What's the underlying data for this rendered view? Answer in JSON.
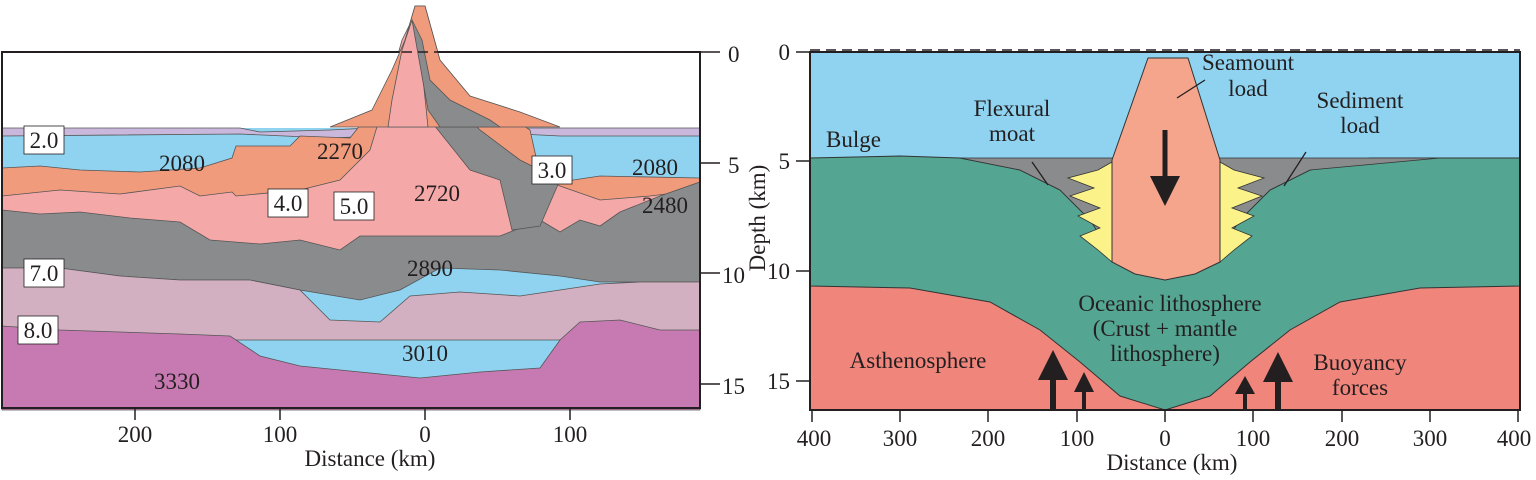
{
  "left_panel": {
    "xlabel": "Distance (km)",
    "ylabel": "Depth (km)",
    "x_ticks": [
      "200",
      "100",
      "0",
      "100"
    ],
    "y_ticks": [
      "0",
      "5",
      "10",
      "15"
    ],
    "velocities": [
      "2.0",
      "3.0",
      "4.0",
      "5.0",
      "7.0",
      "8.0"
    ],
    "densities": [
      "2080",
      "2080",
      "2270",
      "2720",
      "2480",
      "2890",
      "3010",
      "3330"
    ],
    "colors": {
      "water": "#8fd3f0",
      "sediment_thin": "#c9b8dc",
      "orange": "#f19b7d",
      "pink": "#f4a9a8",
      "gray": "#8a8b8d",
      "mauve": "#d3b0c1",
      "magenta": "#c77ab2"
    }
  },
  "right_panel": {
    "xlabel": "Distance (km)",
    "ylabel": "Depth (km)",
    "x_ticks": [
      "400",
      "300",
      "200",
      "100",
      "0",
      "100",
      "200",
      "300",
      "400"
    ],
    "y_ticks": [
      "0",
      "5",
      "10",
      "15"
    ],
    "labels": {
      "seamount_1": "Seamount",
      "seamount_2": "load",
      "flexural_1": "Flexural",
      "flexural_2": "moat",
      "sediment_1": "Sediment",
      "sediment_2": "load",
      "bulge": "Bulge",
      "oceanic_1": "Oceanic lithosphere",
      "oceanic_2": "(Crust + mantle",
      "oceanic_3": "lithosphere)",
      "asthenosphere": "Asthenosphere",
      "buoyancy_1": "Buoyancy",
      "buoyancy_2": "forces"
    },
    "colors": {
      "water": "#8fd3f0",
      "lithosphere": "#54a592",
      "asthenosphere": "#f0857c",
      "seamount": "#f4a58c",
      "moat_fill": "#8a8b8d",
      "apron": "#fbf38a"
    }
  }
}
